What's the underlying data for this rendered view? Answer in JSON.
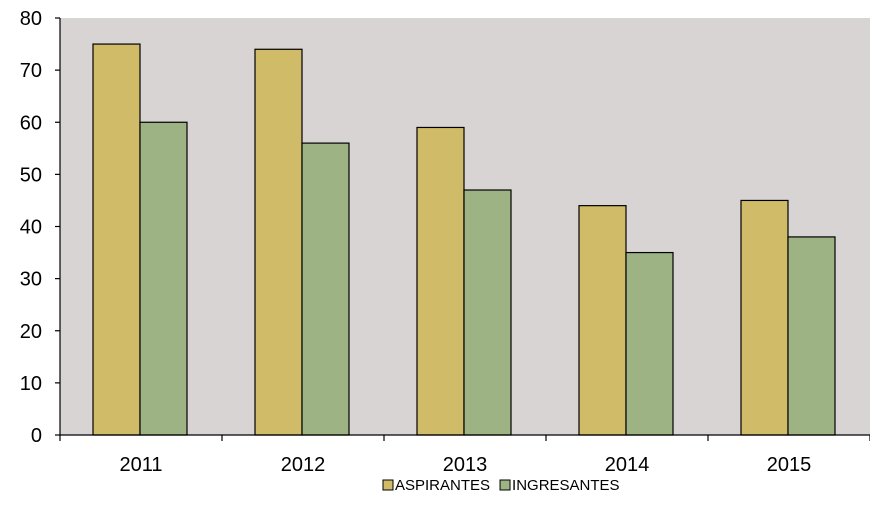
{
  "chart_data": {
    "type": "bar",
    "title": "",
    "xlabel": "",
    "ylabel": "",
    "categories": [
      "2011",
      "2012",
      "2013",
      "2014",
      "2015"
    ],
    "series": [
      {
        "name": "ASPIRANTES",
        "values": [
          75,
          74,
          59,
          44,
          45
        ],
        "color": "#cfbb68"
      },
      {
        "name": "INGRESANTES",
        "values": [
          60,
          56,
          47,
          35,
          38
        ],
        "color": "#9eb384"
      }
    ],
    "ylim": [
      0,
      80
    ],
    "yticks": [
      0,
      10,
      20,
      30,
      40,
      50,
      60,
      70,
      80
    ],
    "grid": false,
    "legend": "bottom-center",
    "plot_background": "#d8d4d4"
  }
}
